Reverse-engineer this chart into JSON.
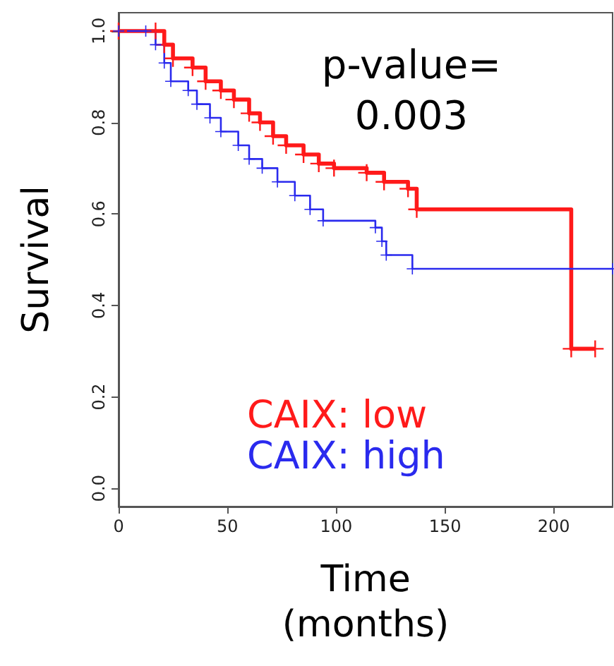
{
  "chart_data": {
    "type": "step",
    "xlabel": "Time\n(months)",
    "ylabel": "Survival",
    "annotations": [
      "p-value=\n0.003"
    ],
    "series": [
      {
        "name": "CAIX: low",
        "color": "#ff1a1a",
        "x": [
          0,
          17,
          21,
          25,
          34,
          40,
          47,
          53,
          60,
          65,
          71,
          77,
          85,
          92,
          99,
          114,
          122,
          133,
          137,
          208,
          219
        ],
        "values": [
          1.0,
          1.0,
          0.97,
          0.94,
          0.92,
          0.89,
          0.87,
          0.85,
          0.82,
          0.8,
          0.77,
          0.75,
          0.73,
          0.71,
          0.7,
          0.69,
          0.67,
          0.655,
          0.61,
          0.305,
          0.305
        ]
      },
      {
        "name": "CAIX: high",
        "color": "#2a2aee",
        "x": [
          0,
          12.5,
          17,
          21,
          24,
          32,
          36,
          42,
          47,
          55,
          60,
          66,
          73,
          81,
          88,
          94,
          118,
          121,
          123,
          135,
          227
        ],
        "values": [
          1.0,
          1.0,
          0.97,
          0.93,
          0.89,
          0.87,
          0.84,
          0.81,
          0.78,
          0.75,
          0.72,
          0.7,
          0.67,
          0.64,
          0.61,
          0.585,
          0.57,
          0.54,
          0.51,
          0.48,
          0.48
        ]
      }
    ],
    "xlim": [
      0,
      227
    ],
    "ylim": [
      -0.04,
      1.04
    ],
    "xticks": [
      0,
      50,
      100,
      150,
      200
    ],
    "yticks": [
      {
        "value": 0,
        "label": "0.0"
      },
      0.2,
      0.4,
      0.6,
      0.8,
      {
        "value": 1,
        "label": "1.0"
      }
    ],
    "grid": false,
    "legend": "bottom left",
    "marker": "cross",
    "line_style": "solid"
  }
}
